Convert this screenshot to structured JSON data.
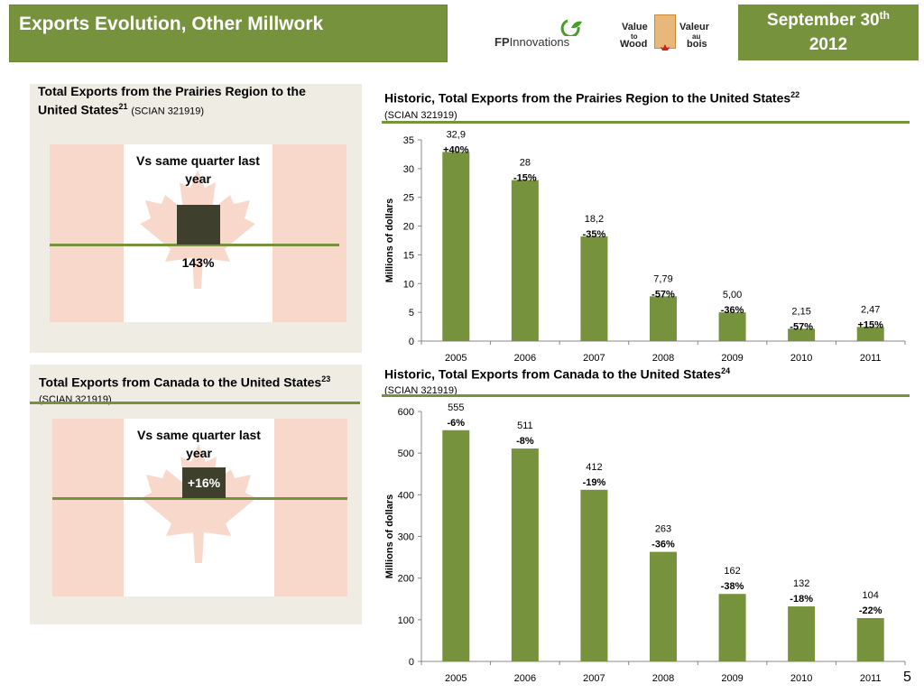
{
  "header": {
    "title": "Exports Evolution, Other Millwork",
    "date_line1": "September 30",
    "date_sup": "th",
    "date_line2": "2012"
  },
  "logos": {
    "fp_bold": "FP",
    "fp_rest": "Innovations",
    "vw_value": "Value",
    "vw_to": "to",
    "vw_wood": "Wood",
    "vw_valeur": "Valeur",
    "vw_au": "au",
    "vw_bois": "bois"
  },
  "panel_prairies": {
    "title": "Total Exports from the Prairies Region to the United States",
    "footnote": "21",
    "scian": "(SCIAN  321919)",
    "vs_label": "Vs same quarter last year",
    "change": "143%"
  },
  "panel_canada": {
    "title": "Total Exports from Canada to the United States",
    "footnote": "23",
    "scian": "(SCIAN  321919)",
    "vs_label": "Vs same quarter last year",
    "change": "+16%"
  },
  "colors": {
    "accent": "#76923c",
    "bar": "#76923c",
    "indicator": "#3f3f2e",
    "flag_red": "#f9d8cc"
  },
  "chart_data": [
    {
      "type": "bar",
      "title": "Historic, Total Exports from the Prairies Region to the United States",
      "footnote": "22",
      "subtitle": "(SCIAN 321919)",
      "xlabel": "",
      "ylabel": "Millions of dollars",
      "categories": [
        "2005",
        "2006",
        "2007",
        "2008",
        "2009",
        "2010",
        "2011"
      ],
      "values": [
        32.9,
        28,
        18.2,
        7.79,
        5.0,
        2.15,
        2.47
      ],
      "value_labels": [
        "32,9",
        "28",
        "18,2",
        "7,79",
        "5,00",
        "2,15",
        "2,47"
      ],
      "change_labels": [
        "+40%",
        "-15%",
        "-35%",
        "-57%",
        "-36%",
        "-57%",
        "+15%"
      ],
      "ylim": [
        0,
        35
      ],
      "yticks": [
        0,
        5,
        10,
        15,
        20,
        25,
        30,
        35
      ]
    },
    {
      "type": "bar",
      "title": "Historic, Total Exports from Canada to the United States",
      "footnote": "24",
      "subtitle": "(SCIAN 321919)",
      "xlabel": "",
      "ylabel": "Millions of dollars",
      "categories": [
        "2005",
        "2006",
        "2007",
        "2008",
        "2009",
        "2010",
        "2011"
      ],
      "values": [
        555,
        511,
        412,
        263,
        162,
        132,
        104
      ],
      "value_labels": [
        "555",
        "511",
        "412",
        "263",
        "162",
        "132",
        "104"
      ],
      "change_labels": [
        "-6%",
        "-8%",
        "-19%",
        "-36%",
        "-38%",
        "-18%",
        "-22%"
      ],
      "ylim": [
        0,
        600
      ],
      "yticks": [
        0,
        100,
        200,
        300,
        400,
        500,
        600
      ]
    }
  ],
  "page_number": "5"
}
